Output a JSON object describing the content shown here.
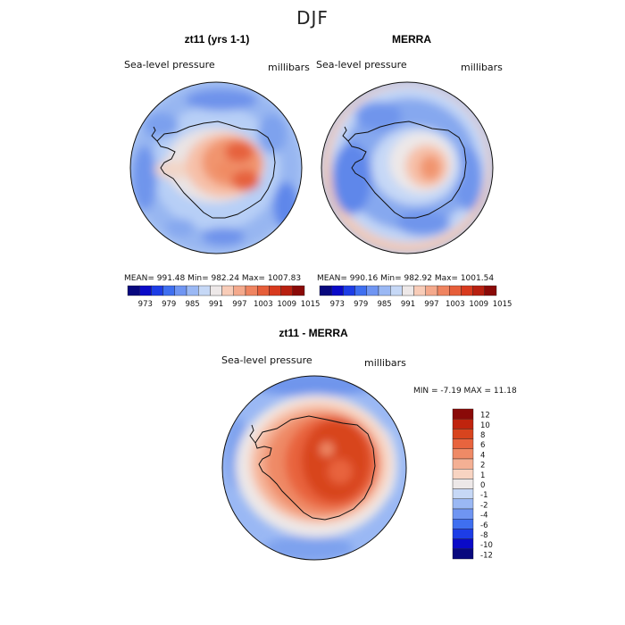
{
  "page": {
    "season_title": "DJF"
  },
  "panels": {
    "left": {
      "title": "zt11 (yrs 1-1)",
      "variable": "Sea-level pressure",
      "units": "millibars",
      "stats": "MEAN= 991.48   Min= 982.24   Max= 1007.83"
    },
    "right": {
      "title": "MERRA",
      "variable": "Sea-level pressure",
      "units": "millibars",
      "stats": "MEAN= 990.16   Min= 982.92   Max= 1001.54"
    },
    "diff": {
      "title": "zt11 - MERRA",
      "variable": "Sea-level pressure",
      "units": "millibars",
      "minmax": "MIN =  -7.19  MAX =  11.18"
    }
  },
  "colorbars": {
    "abs": {
      "colors": [
        "#08087e",
        "#0a0ac8",
        "#1d3de6",
        "#3f6ff0",
        "#6f95f2",
        "#9ab8f4",
        "#c6d8f6",
        "#ede8e8",
        "#f8ccb8",
        "#f4a98c",
        "#ef8460",
        "#e65e3a",
        "#d83a1e",
        "#b82010",
        "#8a0a08"
      ],
      "labels": [
        "973",
        "979",
        "985",
        "991",
        "997",
        "1003",
        "1009",
        "1015"
      ]
    },
    "diff": {
      "colors": [
        "#08087e",
        "#0a0ac8",
        "#1d3de6",
        "#3f6ff0",
        "#6f95f2",
        "#9ab8f4",
        "#c6d8f6",
        "#ede8e8",
        "#f8d4c2",
        "#f4b094",
        "#ef8a66",
        "#e8643e",
        "#d8441e",
        "#c0240e",
        "#8a0a08"
      ],
      "labels": [
        "12",
        "10",
        "8",
        "6",
        "4",
        "2",
        "1",
        "0",
        "-1",
        "-2",
        "-4",
        "-6",
        "-8",
        "-10",
        "-12"
      ]
    }
  },
  "colors": {
    "ocean_low": "#7ea4ee",
    "ocean_mid": "#aac6f4",
    "neutral": "#f1ece8",
    "high": "#ec7f5c",
    "peak": "#d8401c"
  }
}
